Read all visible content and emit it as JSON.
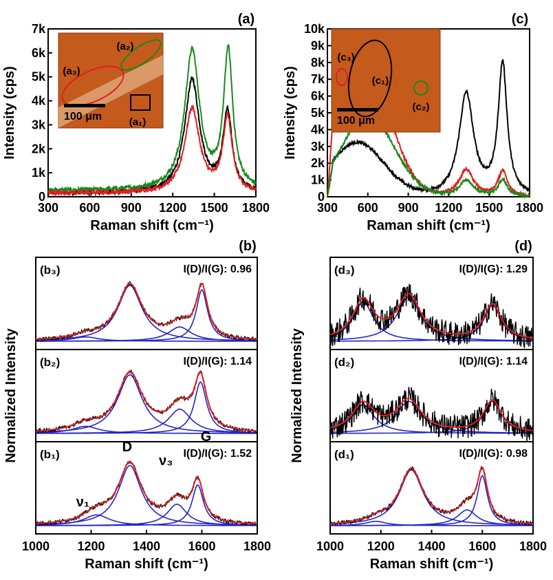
{
  "chart_data": [
    {
      "panel": "(a)",
      "type": "line",
      "xlabel": "Raman shift (cm⁻¹)",
      "ylabel": "Intensity (cps)",
      "xlim": [
        300,
        1800
      ],
      "ylim": [
        0,
        7000
      ],
      "xticks": [
        "300",
        "600",
        "900",
        "1200",
        "1500",
        "1800"
      ],
      "yticks": [
        "0",
        "1k",
        "2k",
        "3k",
        "4k",
        "5k",
        "6k",
        "7k"
      ],
      "series": [
        {
          "color": "#000000",
          "peaks": [
            [
              1340,
              4700
            ],
            [
              1595,
              3250
            ]
          ],
          "baseline": 150
        },
        {
          "color": "#1a8a1a",
          "peaks": [
            [
              1340,
              5800
            ],
            [
              1600,
              5700
            ]
          ],
          "baseline": 250
        },
        {
          "color": "#e02020",
          "peaks": [
            [
              1340,
              3500
            ],
            [
              1595,
              3100
            ]
          ],
          "baseline": 150
        }
      ],
      "inset": {
        "labels": [
          "(a₂)",
          "(a₃)",
          "(a₁)"
        ],
        "scalebar": "100 μm"
      }
    },
    {
      "panel": "(c)",
      "type": "line",
      "xlabel": "Raman shift (cm⁻¹)",
      "ylabel": "Intensity (cps)",
      "xlim": [
        300,
        1800
      ],
      "ylim": [
        0,
        10000
      ],
      "xticks": [
        "300",
        "600",
        "900",
        "1200",
        "1500",
        "1800"
      ],
      "yticks": [
        "0",
        "1k",
        "2k",
        "3k",
        "4k",
        "5k",
        "6k",
        "7k",
        "8k",
        "9k",
        "10k"
      ],
      "series": [
        {
          "color": "#000000",
          "peaks": [
            [
              1330,
              6100
            ],
            [
              1600,
              7800
            ]
          ],
          "broad": [
            [
              520,
              3200
            ]
          ]
        },
        {
          "color": "#e02020",
          "peaks": [
            [
              1330,
              1600
            ],
            [
              1600,
              1500
            ]
          ],
          "broad": [
            [
              550,
              8500
            ]
          ]
        },
        {
          "color": "#1a8a1a",
          "peaks": [
            [
              1330,
              1000
            ],
            [
              1600,
              1000
            ]
          ],
          "broad": [
            [
              600,
              4800
            ]
          ]
        }
      ],
      "inset": {
        "labels": [
          "(c₃)",
          "(c₁)",
          "(c₂)"
        ],
        "scalebar": "100 μm"
      }
    },
    {
      "panel": "(b)",
      "type": "line",
      "xlabel": "Raman shift (cm⁻¹)",
      "ylabel": "Normalized Intensity",
      "xlim": [
        1000,
        1800
      ],
      "xticks": [
        "1000",
        "1200",
        "1400",
        "1600",
        "1800"
      ],
      "subpanels": [
        {
          "label": "(b₃)",
          "ratio": "I(D)/I(G): 0.96",
          "components": [
            [
              1180,
              0.06,
              80
            ],
            [
              1340,
              0.78,
              75
            ],
            [
              1520,
              0.2,
              70
            ],
            [
              1600,
              0.72,
              35
            ]
          ]
        },
        {
          "label": "(b₂)",
          "ratio": "I(D)/I(G): 1.14",
          "components": [
            [
              1180,
              0.1,
              80
            ],
            [
              1340,
              0.82,
              75
            ],
            [
              1520,
              0.34,
              70
            ],
            [
              1595,
              0.72,
              38
            ]
          ]
        },
        {
          "label": "(b₁)",
          "ratio": "I(D)/I(G): 1.52",
          "components": [
            [
              1220,
              0.15,
              80
            ],
            [
              1340,
              0.84,
              70
            ],
            [
              1510,
              0.3,
              60
            ],
            [
              1585,
              0.57,
              35
            ]
          ]
        }
      ],
      "annotations": [
        "ν₁",
        "D",
        "ν₃",
        "G"
      ]
    },
    {
      "panel": "(d)",
      "type": "line",
      "xlabel": "Raman shift (cm⁻¹)",
      "ylabel": "Normalized Intensity",
      "xlim": [
        1000,
        1800
      ],
      "xticks": [
        "1000",
        "1200",
        "1400",
        "1600",
        "1800"
      ],
      "subpanels": [
        {
          "label": "(d₃)",
          "ratio": "I(D)/I(G): 1.29",
          "components": [
            [
              1130,
              0.55,
              70
            ],
            [
              1310,
              0.62,
              80
            ],
            [
              1640,
              0.5,
              60
            ]
          ]
        },
        {
          "label": "(d₂)",
          "ratio": "I(D)/I(G): 1.14",
          "components": [
            [
              1130,
              0.4,
              75
            ],
            [
              1310,
              0.45,
              85
            ],
            [
              1640,
              0.45,
              60
            ]
          ]
        },
        {
          "label": "(d₁)",
          "ratio": "I(D)/I(G): 0.98",
          "components": [
            [
              1180,
              0.06,
              70
            ],
            [
              1320,
              0.78,
              80
            ],
            [
              1540,
              0.22,
              65
            ],
            [
              1600,
              0.7,
              35
            ]
          ]
        }
      ]
    }
  ]
}
